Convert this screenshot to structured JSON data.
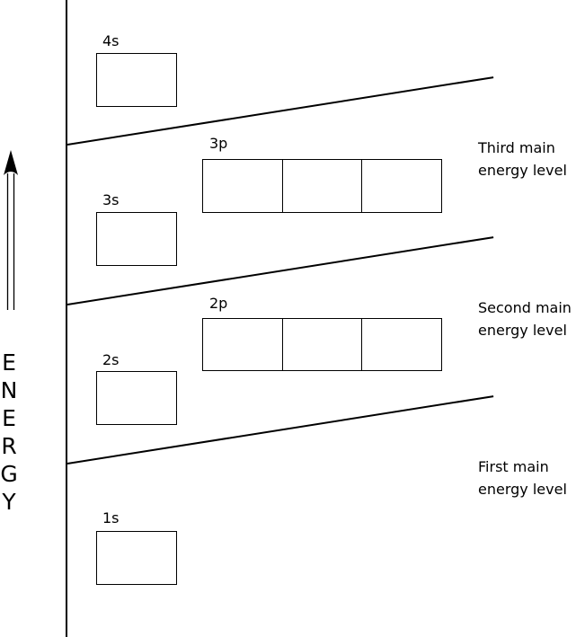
{
  "energy_axis": {
    "letters": [
      "E",
      "N",
      "E",
      "R",
      "G",
      "Y"
    ]
  },
  "orbitals": {
    "s4": "4s",
    "s3": "3s",
    "s2": "2s",
    "s1": "1s",
    "p3": "3p",
    "p2": "2p"
  },
  "levels": {
    "third": [
      "Third main",
      "energy level"
    ],
    "second": [
      "Second main",
      "energy level"
    ],
    "first": [
      "First main",
      "energy level"
    ]
  }
}
